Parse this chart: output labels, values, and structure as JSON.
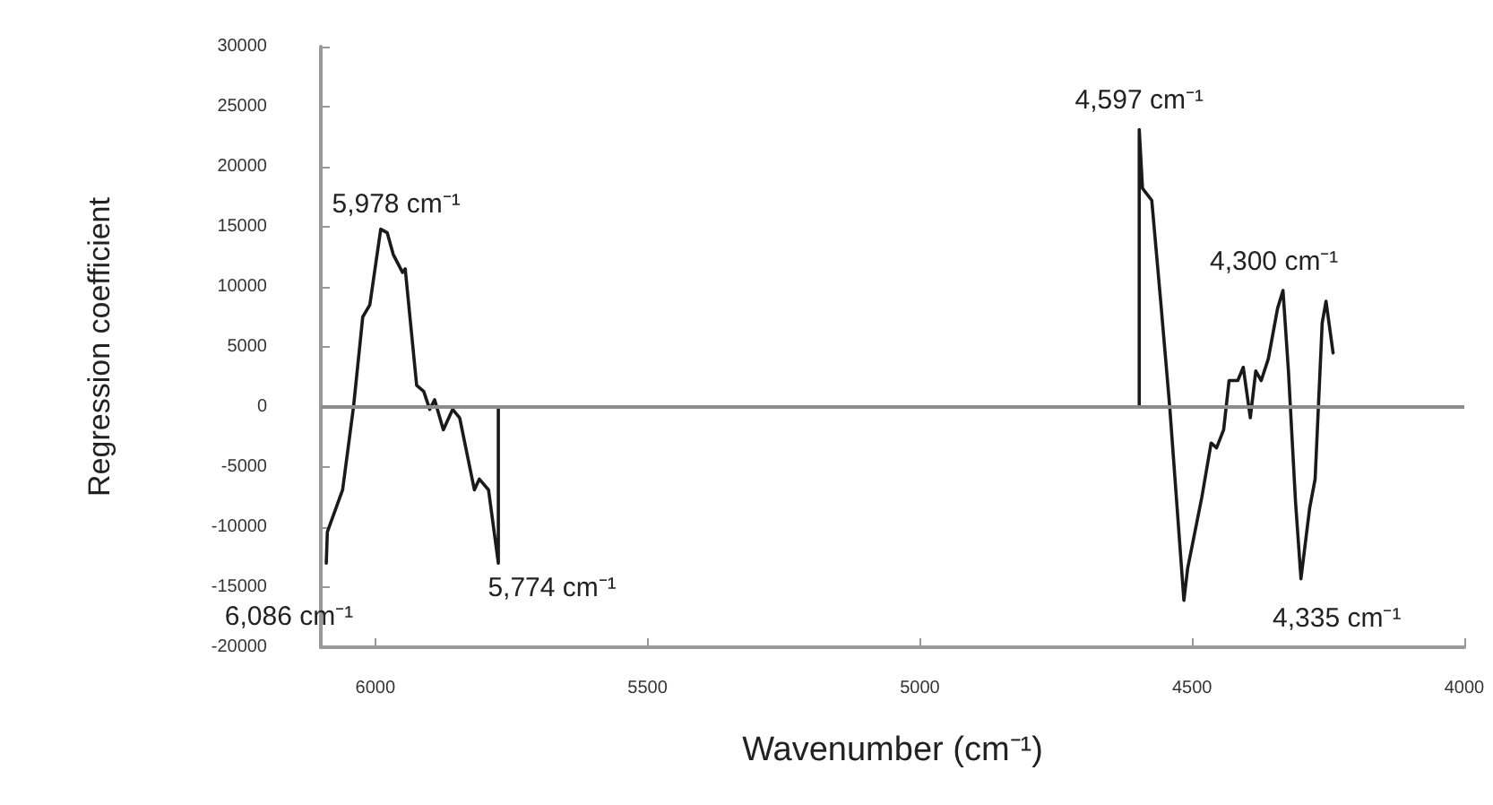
{
  "chart_data": {
    "type": "line",
    "xlabel": "Wavenumber (cm⁻¹)",
    "ylabel": "Regression coefficient",
    "xlim": [
      6100,
      4000
    ],
    "xticks": [
      6000,
      5500,
      5000,
      4500,
      4000
    ],
    "ylim": [
      -20000,
      30000
    ],
    "yticks": [
      -20000,
      -15000,
      -10000,
      -5000,
      0,
      5000,
      10000,
      15000,
      20000,
      25000,
      30000
    ],
    "grid": false,
    "marker": "none",
    "line_style": "solid",
    "series": [
      {
        "color": "#1a1a1a",
        "x": [
          6090,
          6088,
          6060,
          6040,
          6023,
          6010,
          5990,
          5978,
          5967,
          5950,
          5945,
          5924,
          5911,
          5900,
          5891,
          5875,
          5858,
          5845,
          5818,
          5809,
          5792,
          5774,
          5774,
          4597,
          4597,
          4591,
          4574,
          4558,
          4541,
          4515,
          4508,
          4482,
          4465,
          4455,
          4442,
          4432,
          4416,
          4406,
          4393,
          4383,
          4373,
          4360,
          4343,
          4333,
          4323,
          4310,
          4300,
          4284,
          4274,
          4261,
          4254,
          4241
        ],
        "values": [
          -13000,
          -10400,
          -6900,
          0,
          7500,
          8500,
          14800,
          14500,
          12700,
          11200,
          11500,
          1800,
          1300,
          -200,
          600,
          -1900,
          -200,
          -900,
          -6900,
          -6000,
          -6900,
          -13000,
          0,
          0,
          23100,
          18200,
          17200,
          9000,
          0,
          -16100,
          -13400,
          -7500,
          -3000,
          -3400,
          -1900,
          2200,
          2200,
          3300,
          -900,
          3000,
          2200,
          4000,
          8200,
          9700,
          3000,
          -7900,
          -14300,
          -8400,
          -6000,
          7000,
          8800,
          4500
        ]
      }
    ],
    "ref_lines": [
      {
        "axis": "y",
        "value": 0,
        "color": "#8c8c8c"
      }
    ],
    "annotations": [
      {
        "text": "6,086 cm⁻¹",
        "x": 6086,
        "y": -13000
      },
      {
        "text": "5,978 cm⁻¹",
        "x": 5978,
        "y": 14500
      },
      {
        "text": "5,774 cm⁻¹",
        "x": 5774,
        "y": -13000
      },
      {
        "text": "4,597 cm⁻¹",
        "x": 4597,
        "y": 23100
      },
      {
        "text": "4,300 cm⁻¹",
        "x": 4333,
        "y": 9700
      },
      {
        "text": "4,335 cm⁻¹",
        "x": 4300,
        "y": -14300
      }
    ]
  }
}
